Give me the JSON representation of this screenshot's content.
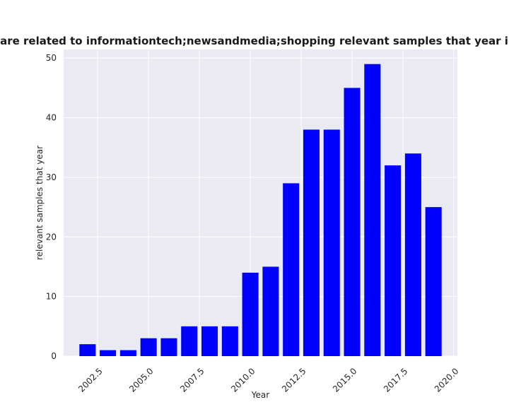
{
  "chart_data": {
    "type": "bar",
    "title": "Samples are related to informationtech;newsandmedia;shopping relevant samples that year in privacy",
    "xlabel": "Year",
    "ylabel": "relevant samples that year",
    "x": [
      2002,
      2003,
      2004,
      2005,
      2006,
      2007,
      2008,
      2009,
      2010,
      2011,
      2012,
      2013,
      2014,
      2015,
      2016,
      2017,
      2018,
      2019
    ],
    "values": [
      2,
      1,
      1,
      3,
      3,
      5,
      5,
      5,
      14,
      15,
      29,
      38,
      38,
      45,
      49,
      32,
      34,
      25
    ],
    "xlim": [
      2000.825,
      2020.175
    ],
    "ylim": [
      0,
      51.45
    ],
    "xticks": [
      2002.5,
      2005.0,
      2007.5,
      2010.0,
      2012.5,
      2015.0,
      2017.5,
      2020.0
    ],
    "xtick_labels": [
      "2002.5",
      "2005.0",
      "2007.5",
      "2010.0",
      "2012.5",
      "2015.0",
      "2017.5",
      "2020.0"
    ],
    "yticks": [
      0,
      10,
      20,
      30,
      40,
      50
    ],
    "ytick_labels": [
      "0",
      "10",
      "20",
      "30",
      "40",
      "50"
    ],
    "bar_width": 0.8,
    "grid": true,
    "colors": {
      "bar": "#0000ff",
      "background": "#eaeaf2",
      "grid": "#ffffff"
    }
  }
}
